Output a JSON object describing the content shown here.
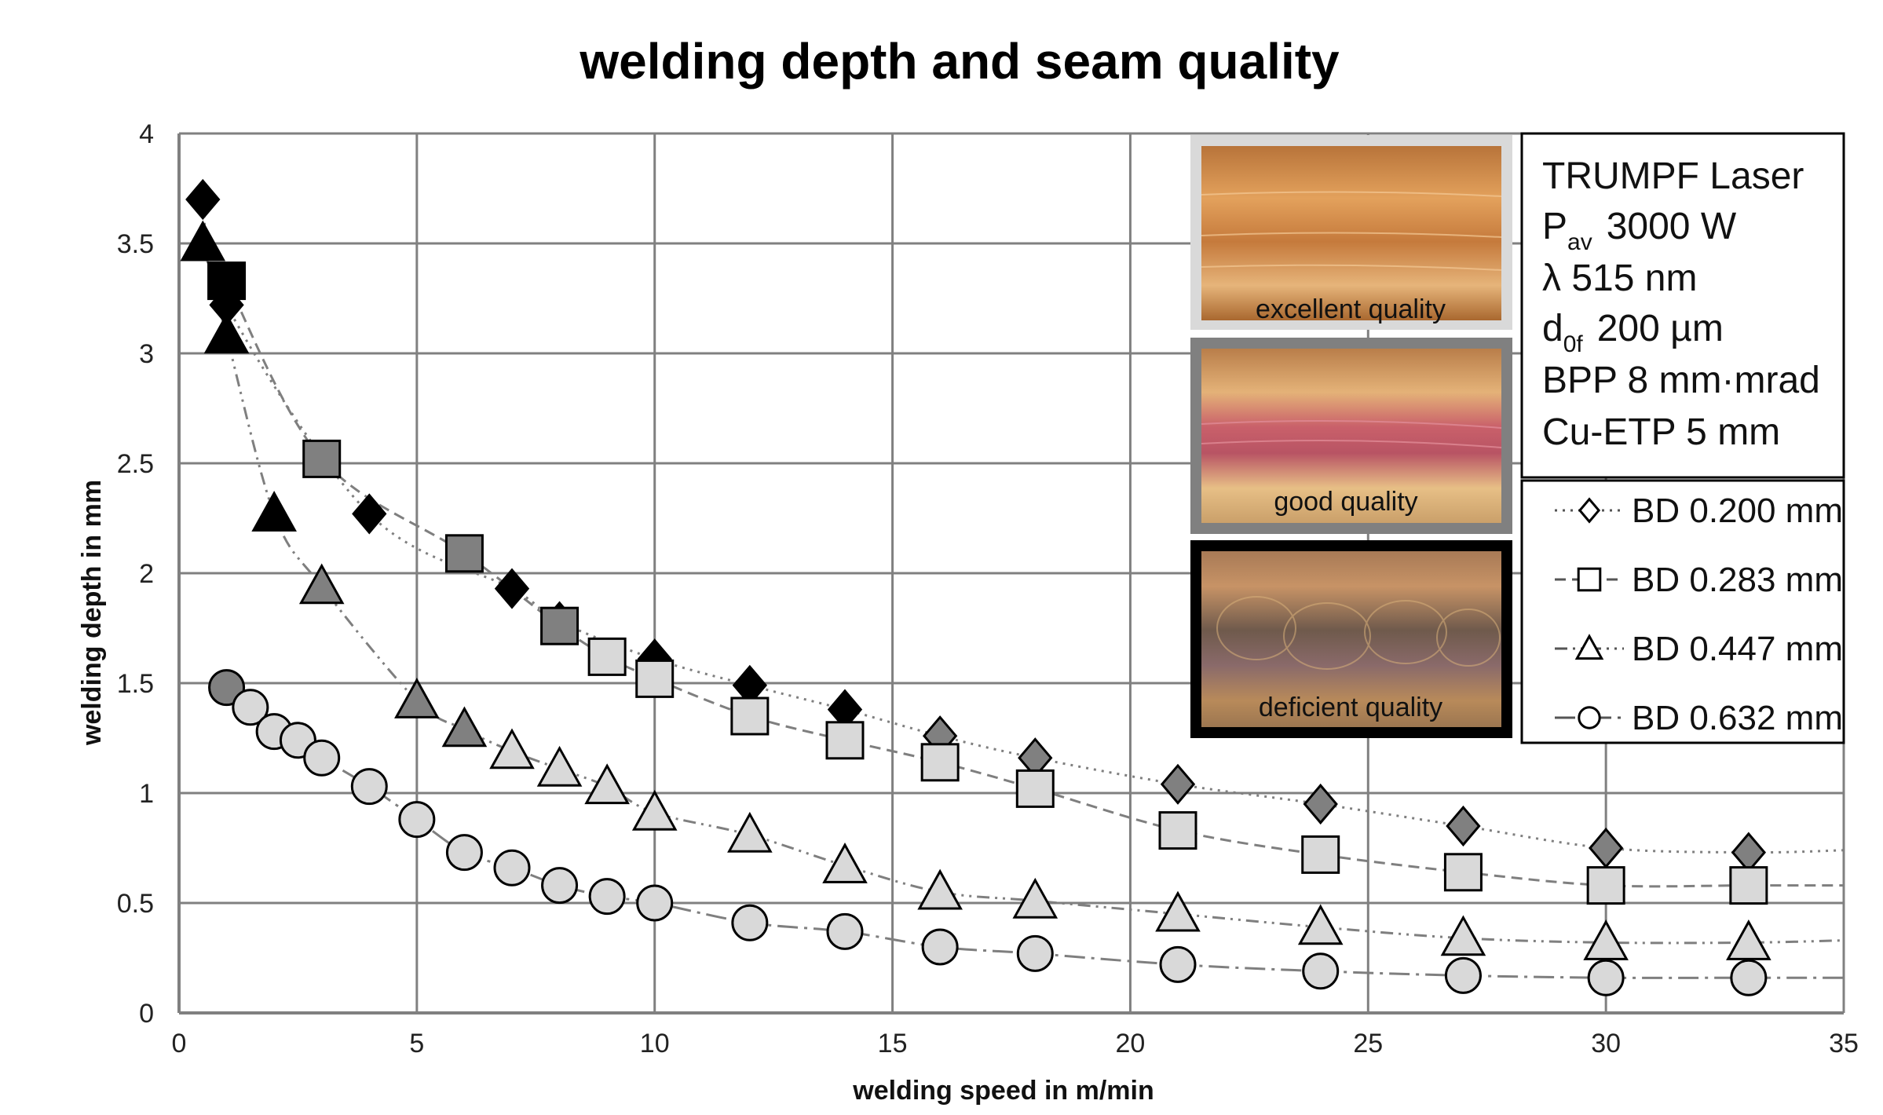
{
  "chart_data": {
    "type": "scatter",
    "title": "welding depth and seam quality",
    "xlabel": "welding speed in m/min",
    "ylabel": "welding depth in mm",
    "xlim": [
      0,
      35
    ],
    "ylim": [
      0,
      4
    ],
    "xticks": [
      "0",
      "5",
      "10",
      "15",
      "20",
      "25",
      "30",
      "35"
    ],
    "yticks": [
      "0",
      "0.5",
      "1",
      "1.5",
      "2",
      "2.5",
      "3",
      "3.5",
      "4"
    ],
    "grid": true,
    "legend_position": "right",
    "series": [
      {
        "name": "BD 0.200 mm",
        "marker": "diamond",
        "line_style": "dotted",
        "x": [
          0.5,
          1,
          4,
          7,
          8,
          10,
          12,
          14,
          16,
          18,
          21,
          24,
          27,
          30,
          33
        ],
        "y": [
          3.7,
          3.22,
          2.27,
          1.93,
          1.78,
          1.61,
          1.49,
          1.38,
          1.26,
          1.16,
          1.04,
          0.95,
          0.85,
          0.75,
          0.73
        ],
        "quality": [
          "deficient",
          "deficient",
          "deficient",
          "deficient",
          "deficient",
          "deficient",
          "deficient",
          "deficient",
          "good",
          "good",
          "good",
          "good",
          "good",
          "good",
          "good"
        ],
        "fit_end": 0.74
      },
      {
        "name": "BD 0.283 mm",
        "marker": "square",
        "line_style": "dashed",
        "x": [
          1,
          3,
          6,
          8,
          9,
          10,
          12,
          14,
          16,
          18,
          21,
          24,
          27,
          30,
          33
        ],
        "y": [
          3.33,
          2.52,
          2.09,
          1.76,
          1.62,
          1.52,
          1.35,
          1.24,
          1.14,
          1.02,
          0.83,
          0.72,
          0.64,
          0.58,
          0.58
        ],
        "quality": [
          "deficient",
          "good",
          "good",
          "good",
          "excellent",
          "excellent",
          "excellent",
          "excellent",
          "excellent",
          "excellent",
          "excellent",
          "excellent",
          "excellent",
          "excellent",
          "excellent"
        ],
        "fit_end": 0.58
      },
      {
        "name": "BD 0.447 mm",
        "marker": "triangle",
        "line_style": "dash-dot-dot",
        "x": [
          0.5,
          1,
          2,
          3,
          5,
          6,
          7,
          8,
          9,
          10,
          12,
          14,
          16,
          18,
          21,
          24,
          27,
          30,
          33
        ],
        "y": [
          3.5,
          3.08,
          2.27,
          1.94,
          1.42,
          1.29,
          1.19,
          1.11,
          1.03,
          0.91,
          0.81,
          0.67,
          0.55,
          0.51,
          0.45,
          0.39,
          0.34,
          0.32,
          0.32
        ],
        "quality": [
          "deficient",
          "deficient",
          "deficient",
          "good",
          "good",
          "good",
          "excellent",
          "excellent",
          "excellent",
          "excellent",
          "excellent",
          "excellent",
          "excellent",
          "excellent",
          "excellent",
          "excellent",
          "excellent",
          "excellent",
          "excellent"
        ],
        "fit_end": 0.33
      },
      {
        "name": "BD 0.632 mm",
        "marker": "circle",
        "line_style": "long-dash-dot",
        "x": [
          1,
          1.5,
          2,
          2.5,
          3,
          4,
          5,
          6,
          7,
          8,
          9,
          10,
          12,
          14,
          16,
          18,
          21,
          24,
          27,
          30,
          33
        ],
        "y": [
          1.48,
          1.39,
          1.28,
          1.24,
          1.16,
          1.03,
          0.88,
          0.73,
          0.66,
          0.58,
          0.53,
          0.5,
          0.41,
          0.37,
          0.3,
          0.27,
          0.22,
          0.19,
          0.17,
          0.16,
          0.16
        ],
        "quality": [
          "good",
          "excellent",
          "excellent",
          "excellent",
          "excellent",
          "excellent",
          "excellent",
          "excellent",
          "excellent",
          "excellent",
          "excellent",
          "excellent",
          "excellent",
          "excellent",
          "excellent",
          "excellent",
          "excellent",
          "excellent",
          "excellent",
          "excellent",
          "excellent"
        ],
        "fit_end": 0.16
      }
    ],
    "quality_legend": [
      {
        "label": "excellent quality",
        "key": "excellent",
        "color": "#d9d9d9"
      },
      {
        "label": "good quality",
        "key": "good",
        "color": "#808080"
      },
      {
        "label": "deficient quality",
        "key": "deficient",
        "color": "#000000"
      }
    ],
    "info_box": {
      "line1": "TRUMPF Laser",
      "power_symbol": "P",
      "power_subscript": "av",
      "power_value": "3000 W",
      "wavelength": "λ 515 nm",
      "diameter_symbol": "d",
      "diameter_subscript": "0f",
      "diameter_value": "200 µm",
      "bpp": "BPP 8 mm·mrad",
      "material": "Cu-ETP 5 mm"
    }
  },
  "colors": {
    "excellent": "#d9d9d9",
    "good": "#808080",
    "deficient": "#000000",
    "grid": "#808080",
    "fit_line": "#7f7f7f"
  }
}
